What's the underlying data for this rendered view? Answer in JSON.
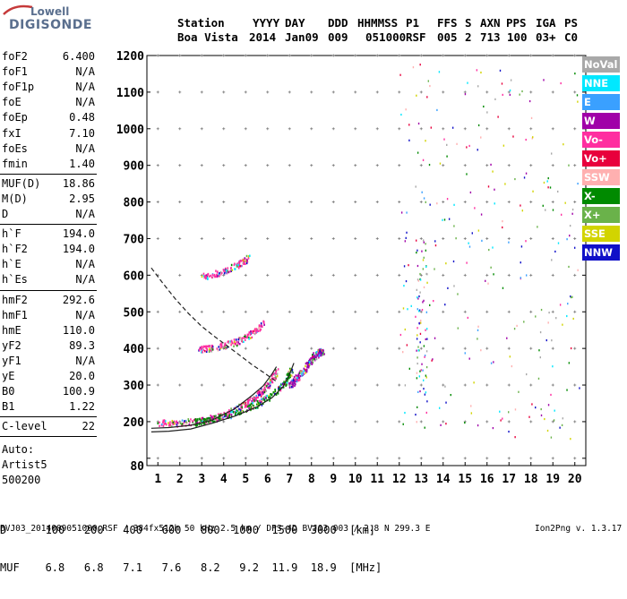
{
  "logo": {
    "top": "Lowell",
    "bottom": "DIGISONDE"
  },
  "header": {
    "labels": [
      "Station",
      "YYYY",
      "DAY",
      "DDD",
      "HHMMSS",
      "P1",
      "FFS",
      "S",
      "AXN",
      "PPS",
      "IGA",
      "PS"
    ],
    "values": [
      "Boa Vista",
      "2014",
      "Jan09",
      "009",
      "051000",
      "RSF",
      "005",
      "2",
      "713",
      "100",
      "03+",
      "C0"
    ]
  },
  "params": {
    "group1": [
      {
        "label": "foF2",
        "value": "6.400"
      },
      {
        "label": "foF1",
        "value": "N/A"
      },
      {
        "label": "foF1p",
        "value": "N/A"
      },
      {
        "label": "foE",
        "value": "N/A"
      },
      {
        "label": "foEp",
        "value": "0.48"
      },
      {
        "label": "fxI",
        "value": "7.10"
      },
      {
        "label": "foEs",
        "value": "N/A"
      },
      {
        "label": "fmin",
        "value": "1.40"
      }
    ],
    "group2": [
      {
        "label": "MUF(D)",
        "value": "18.86"
      },
      {
        "label": "M(D)",
        "value": "2.95"
      },
      {
        "label": "D",
        "value": "N/A"
      }
    ],
    "group3": [
      {
        "label": "h`F",
        "value": "194.0"
      },
      {
        "label": "h`F2",
        "value": "194.0"
      },
      {
        "label": "h`E",
        "value": "N/A"
      },
      {
        "label": "h`Es",
        "value": "N/A"
      }
    ],
    "group4": [
      {
        "label": "hmF2",
        "value": "292.6"
      },
      {
        "label": "hmF1",
        "value": "N/A"
      },
      {
        "label": "hmE",
        "value": "110.0"
      },
      {
        "label": "yF2",
        "value": "89.3"
      },
      {
        "label": "yF1",
        "value": "N/A"
      },
      {
        "label": "yE",
        "value": "20.0"
      },
      {
        "label": "B0",
        "value": "100.9"
      },
      {
        "label": "B1",
        "value": "1.22"
      }
    ],
    "group5": [
      {
        "label": "C-level",
        "value": "22"
      }
    ],
    "auto": [
      "Auto:",
      "Artist5",
      "500200"
    ]
  },
  "legend": [
    {
      "label": "NoVal",
      "color": "#a8a8a8"
    },
    {
      "label": "NNE",
      "color": "#00e8ff"
    },
    {
      "label": "E",
      "color": "#3aa0ff"
    },
    {
      "label": "W",
      "color": "#a000a8"
    },
    {
      "label": "Vo-",
      "color": "#ff2ea0"
    },
    {
      "label": "Vo+",
      "color": "#e8003c"
    },
    {
      "label": "SSW",
      "color": "#ffb0b0"
    },
    {
      "label": "X-",
      "color": "#008a00"
    },
    {
      "label": "X+",
      "color": "#6ab24a"
    },
    {
      "label": "SSE",
      "color": "#d2d400"
    },
    {
      "label": "NNW",
      "color": "#1010c8"
    }
  ],
  "dmuf": {
    "d_line": "D      100   200   400   600   800  1000  1500  3000  [km]",
    "muf_line": "MUF    6.8   6.8   7.1   7.6   8.2   9.2  11.9  18.9  [MHz]"
  },
  "footer": {
    "text": "BVJ03_2014009051000.RSF / 384fx512h 50 kHz 2.5 km / DPS-4D BVJ03 003 / 2.8 N 299.3 E",
    "version": "Ion2Png v. 1.3.17"
  },
  "chart_data": {
    "type": "scatter",
    "xlim": [
      0.5,
      20.5
    ],
    "ylim": [
      80,
      1200
    ],
    "x_ticks": [
      1,
      2,
      3,
      4,
      5,
      6,
      7,
      8,
      9,
      10,
      11,
      12,
      13,
      14,
      15,
      16,
      17,
      18,
      19,
      20
    ],
    "y_ticks": [
      80,
      100,
      200,
      300,
      400,
      500,
      600,
      700,
      800,
      900,
      1000,
      1100,
      1200
    ],
    "y_tick_labels": [
      "80",
      "",
      "200",
      "300",
      "400",
      "500",
      "600",
      "700",
      "800",
      "900",
      "1000",
      "1100",
      "1200"
    ],
    "grid": true,
    "traces": [
      {
        "name": "F2 o-trace",
        "color": "#ff2ea0",
        "points": [
          [
            1.0,
            198
          ],
          [
            2.0,
            198
          ],
          [
            3.0,
            204
          ],
          [
            4.0,
            220
          ],
          [
            5.0,
            250
          ],
          [
            5.5,
            272
          ],
          [
            6.0,
            300
          ],
          [
            6.4,
            340
          ]
        ]
      },
      {
        "name": "F2 x-trace",
        "color": "#008a00",
        "points": [
          [
            2.6,
            200
          ],
          [
            3.5,
            208
          ],
          [
            4.5,
            225
          ],
          [
            5.5,
            250
          ],
          [
            6.2,
            275
          ],
          [
            6.8,
            310
          ],
          [
            7.1,
            345
          ]
        ]
      },
      {
        "name": "2nd hop",
        "color": "#ff2ea0",
        "points": [
          [
            2.8,
            398
          ],
          [
            3.5,
            402
          ],
          [
            4.5,
            418
          ],
          [
            5.2,
            440
          ],
          [
            5.8,
            470
          ]
        ]
      },
      {
        "name": "3rd hop",
        "color": "#ff2ea0",
        "points": [
          [
            3.0,
            598
          ],
          [
            3.8,
            608
          ],
          [
            4.6,
            628
          ],
          [
            5.1,
            648
          ]
        ]
      },
      {
        "name": "W spread",
        "color": "#a000a8",
        "points": [
          [
            7.0,
            300
          ],
          [
            7.3,
            320
          ],
          [
            7.6,
            340
          ],
          [
            8.0,
            375
          ],
          [
            8.3,
            390
          ],
          [
            8.5,
            395
          ]
        ]
      }
    ],
    "profile_curves": [
      {
        "name": "profile solid",
        "style": "solid",
        "points": [
          [
            0.7,
            182
          ],
          [
            1.5,
            184
          ],
          [
            2.5,
            190
          ],
          [
            3.5,
            205
          ],
          [
            4.5,
            235
          ],
          [
            5.3,
            272
          ],
          [
            5.8,
            298
          ],
          [
            6.2,
            330
          ],
          [
            6.4,
            350
          ]
        ]
      },
      {
        "name": "profile solid 2",
        "style": "solid",
        "points": [
          [
            0.7,
            172
          ],
          [
            1.5,
            174
          ],
          [
            2.5,
            180
          ],
          [
            3.5,
            196
          ],
          [
            4.5,
            215
          ],
          [
            5.5,
            240
          ],
          [
            6.2,
            265
          ],
          [
            6.7,
            295
          ],
          [
            7.0,
            330
          ],
          [
            7.2,
            360
          ]
        ]
      },
      {
        "name": "profile dashed",
        "style": "dashed",
        "points": [
          [
            0.7,
            620
          ],
          [
            1.2,
            580
          ],
          [
            1.8,
            535
          ],
          [
            2.4,
            495
          ],
          [
            3.0,
            460
          ],
          [
            3.6,
            432
          ],
          [
            4.2,
            405
          ],
          [
            4.8,
            378
          ],
          [
            5.3,
            355
          ],
          [
            5.8,
            335
          ],
          [
            6.2,
            318
          ],
          [
            6.4,
            310
          ]
        ]
      }
    ]
  }
}
